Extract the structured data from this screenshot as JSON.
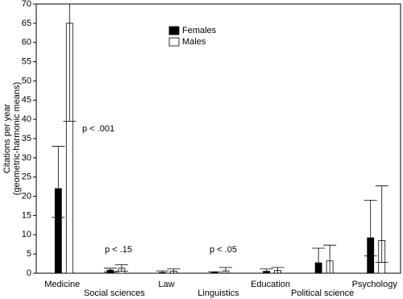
{
  "chart_data": {
    "type": "bar",
    "ylabel": [
      "Citations per year",
      "(geometric-harmonic means)"
    ],
    "categories": [
      "Medicine",
      "Social sciences",
      "Law",
      "Linguistics",
      "Education",
      "Political science",
      "Psychology"
    ],
    "series": [
      {
        "name": "Females",
        "color": "#000000",
        "values": [
          22,
          0.8,
          0.2,
          0.2,
          0.5,
          2.7,
          9.2
        ],
        "lower": [
          14.5,
          0.3,
          0,
          0,
          0,
          0,
          4.5
        ],
        "upper": [
          33,
          1.3,
          0.6,
          0.4,
          1.1,
          6.5,
          19
        ]
      },
      {
        "name": "Males",
        "color": "#ffffff",
        "values": [
          65,
          1.3,
          0.5,
          0.6,
          0.7,
          3.2,
          8.5
        ],
        "lower": [
          39.5,
          0.5,
          0,
          0,
          0,
          0,
          2.8
        ],
        "upper": [
          70,
          2.2,
          1.1,
          1.5,
          1.5,
          7.3,
          22.7
        ]
      }
    ],
    "annotations": [
      "p < .001",
      "p < .15",
      "p < .05"
    ],
    "ylim": [
      0,
      70
    ],
    "yticks": [
      0,
      5,
      10,
      15,
      20,
      25,
      30,
      35,
      40,
      45,
      50,
      55,
      60,
      65,
      70
    ],
    "legend": "top-center"
  }
}
